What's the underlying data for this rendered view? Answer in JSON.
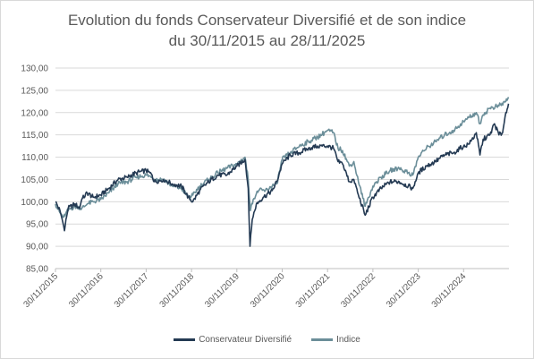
{
  "chart_data": {
    "type": "line",
    "title": "Evolution du fonds Conservateur Diversifié et de son indice",
    "subtitle": "du 30/11/2015 au 28/11/2025",
    "xlabel": "",
    "ylabel": "",
    "ylim": [
      85,
      130
    ],
    "yticks": [
      "85,00",
      "90,00",
      "95,00",
      "100,00",
      "105,00",
      "110,00",
      "115,00",
      "120,00",
      "125,00",
      "130,00"
    ],
    "xticks": [
      "30/11/2015",
      "30/11/2016",
      "30/11/2017",
      "30/11/2018",
      "30/11/2019",
      "30/11/2020",
      "30/11/2021",
      "30/11/2022",
      "30/11/2023",
      "30/11/2024"
    ],
    "grid": "horizontal",
    "legend_position": "bottom",
    "series": [
      {
        "name": "Conservateur Diversifié",
        "color": "#243a53",
        "points": [
          [
            2015.92,
            100.0
          ],
          [
            2016.02,
            98.0
          ],
          [
            2016.08,
            95.5
          ],
          [
            2016.12,
            93.5
          ],
          [
            2016.15,
            96.0
          ],
          [
            2016.2,
            98.5
          ],
          [
            2016.35,
            99.5
          ],
          [
            2016.45,
            98.5
          ],
          [
            2016.5,
            100.5
          ],
          [
            2016.62,
            102.0
          ],
          [
            2016.75,
            101.0
          ],
          [
            2016.92,
            101.5
          ],
          [
            2017.1,
            103.0
          ],
          [
            2017.3,
            105.0
          ],
          [
            2017.5,
            105.5
          ],
          [
            2017.7,
            106.5
          ],
          [
            2017.92,
            107.0
          ],
          [
            2018.05,
            106.0
          ],
          [
            2018.1,
            104.5
          ],
          [
            2018.3,
            105.0
          ],
          [
            2018.5,
            104.0
          ],
          [
            2018.7,
            103.5
          ],
          [
            2018.85,
            101.0
          ],
          [
            2018.95,
            100.0
          ],
          [
            2019.1,
            102.5
          ],
          [
            2019.3,
            104.5
          ],
          [
            2019.5,
            106.0
          ],
          [
            2019.7,
            106.0
          ],
          [
            2019.92,
            108.0
          ],
          [
            2020.1,
            109.5
          ],
          [
            2020.17,
            103.0
          ],
          [
            2020.21,
            90.0
          ],
          [
            2020.26,
            96.0
          ],
          [
            2020.35,
            99.5
          ],
          [
            2020.5,
            101.0
          ],
          [
            2020.7,
            102.5
          ],
          [
            2020.8,
            104.5
          ],
          [
            2020.92,
            108.5
          ],
          [
            2021.1,
            110.5
          ],
          [
            2021.3,
            111.0
          ],
          [
            2021.5,
            112.0
          ],
          [
            2021.7,
            112.5
          ],
          [
            2021.92,
            112.5
          ],
          [
            2022.05,
            112.0
          ],
          [
            2022.15,
            109.0
          ],
          [
            2022.25,
            108.5
          ],
          [
            2022.4,
            104.5
          ],
          [
            2022.5,
            105.0
          ],
          [
            2022.6,
            101.5
          ],
          [
            2022.75,
            97.0
          ],
          [
            2022.92,
            101.0
          ],
          [
            2023.1,
            103.0
          ],
          [
            2023.3,
            104.5
          ],
          [
            2023.5,
            104.5
          ],
          [
            2023.7,
            103.5
          ],
          [
            2023.8,
            103.0
          ],
          [
            2023.92,
            106.5
          ],
          [
            2024.1,
            108.0
          ],
          [
            2024.3,
            109.0
          ],
          [
            2024.5,
            110.5
          ],
          [
            2024.7,
            111.0
          ],
          [
            2024.92,
            112.5
          ],
          [
            2025.05,
            113.0
          ],
          [
            2025.2,
            115.5
          ],
          [
            2025.28,
            110.5
          ],
          [
            2025.35,
            114.0
          ],
          [
            2025.5,
            115.0
          ],
          [
            2025.6,
            117.5
          ],
          [
            2025.7,
            115.0
          ],
          [
            2025.78,
            115.5
          ],
          [
            2025.85,
            120.0
          ],
          [
            2025.91,
            122.0
          ]
        ]
      },
      {
        "name": "Indice",
        "color": "#6b8e99",
        "points": [
          [
            2015.92,
            99.5
          ],
          [
            2016.02,
            97.5
          ],
          [
            2016.1,
            96.5
          ],
          [
            2016.15,
            97.5
          ],
          [
            2016.25,
            98.5
          ],
          [
            2016.4,
            99.0
          ],
          [
            2016.5,
            98.5
          ],
          [
            2016.62,
            99.5
          ],
          [
            2016.75,
            100.0
          ],
          [
            2016.92,
            100.5
          ],
          [
            2017.1,
            102.0
          ],
          [
            2017.3,
            104.0
          ],
          [
            2017.5,
            104.5
          ],
          [
            2017.7,
            105.5
          ],
          [
            2017.92,
            106.0
          ],
          [
            2018.05,
            105.5
          ],
          [
            2018.1,
            105.0
          ],
          [
            2018.3,
            105.0
          ],
          [
            2018.5,
            103.5
          ],
          [
            2018.7,
            103.0
          ],
          [
            2018.85,
            101.0
          ],
          [
            2018.95,
            101.5
          ],
          [
            2019.1,
            103.5
          ],
          [
            2019.3,
            105.0
          ],
          [
            2019.5,
            106.5
          ],
          [
            2019.7,
            107.5
          ],
          [
            2019.92,
            108.5
          ],
          [
            2020.1,
            110.0
          ],
          [
            2020.17,
            105.0
          ],
          [
            2020.22,
            98.0
          ],
          [
            2020.28,
            100.5
          ],
          [
            2020.4,
            102.5
          ],
          [
            2020.55,
            102.5
          ],
          [
            2020.7,
            103.5
          ],
          [
            2020.8,
            104.0
          ],
          [
            2020.92,
            109.5
          ],
          [
            2021.1,
            111.0
          ],
          [
            2021.3,
            112.5
          ],
          [
            2021.5,
            113.5
          ],
          [
            2021.7,
            114.5
          ],
          [
            2021.85,
            115.5
          ],
          [
            2021.92,
            116.0
          ],
          [
            2022.05,
            115.5
          ],
          [
            2022.15,
            112.0
          ],
          [
            2022.25,
            111.5
          ],
          [
            2022.4,
            108.0
          ],
          [
            2022.5,
            109.0
          ],
          [
            2022.6,
            104.5
          ],
          [
            2022.75,
            99.0
          ],
          [
            2022.92,
            103.5
          ],
          [
            2023.1,
            105.5
          ],
          [
            2023.3,
            107.0
          ],
          [
            2023.5,
            107.5
          ],
          [
            2023.7,
            106.5
          ],
          [
            2023.8,
            106.0
          ],
          [
            2023.92,
            110.0
          ],
          [
            2024.1,
            112.0
          ],
          [
            2024.3,
            113.5
          ],
          [
            2024.5,
            115.0
          ],
          [
            2024.7,
            116.0
          ],
          [
            2024.92,
            118.0
          ],
          [
            2025.05,
            119.0
          ],
          [
            2025.2,
            120.0
          ],
          [
            2025.28,
            117.5
          ],
          [
            2025.35,
            119.5
          ],
          [
            2025.5,
            121.0
          ],
          [
            2025.7,
            121.5
          ],
          [
            2025.85,
            122.5
          ],
          [
            2025.91,
            123.5
          ]
        ]
      }
    ]
  }
}
